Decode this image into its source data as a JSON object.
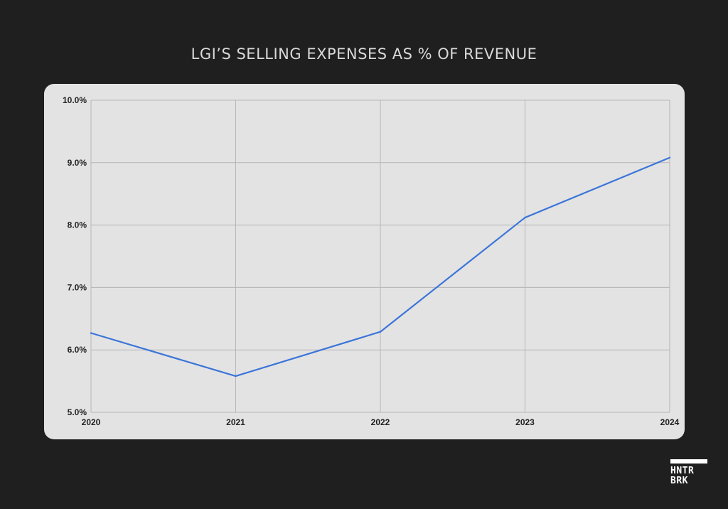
{
  "chart_data": {
    "type": "line",
    "title": "LGI’S SELLING EXPENSES AS % OF REVENUE",
    "xlabel": "",
    "ylabel": "",
    "categories": [
      "2020",
      "2021",
      "2022",
      "2023",
      "2024"
    ],
    "series": [
      {
        "name": "Selling expenses as % of revenue",
        "values": [
          6.27,
          5.58,
          6.29,
          8.12,
          9.08
        ],
        "color": "#3b75d9"
      }
    ],
    "ylim": [
      5.0,
      10.0
    ],
    "yticks": [
      5.0,
      6.0,
      7.0,
      8.0,
      9.0,
      10.0
    ],
    "ytick_labels": [
      "5.0%",
      "6.0%",
      "7.0%",
      "8.0%",
      "9.0%",
      "10.0%"
    ],
    "grid": true,
    "legend": "none"
  },
  "brand": {
    "line1": "HNTR",
    "line2": "BRK"
  }
}
